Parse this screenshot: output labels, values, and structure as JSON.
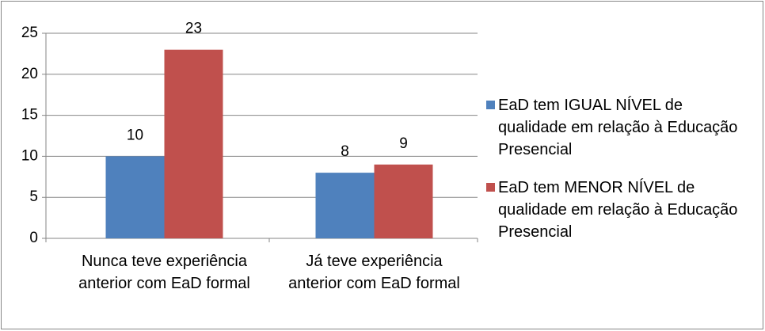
{
  "chart_data": {
    "type": "bar",
    "categories": [
      "Nunca teve experiência anterior com EaD formal",
      "Já teve experiência anterior com EaD formal"
    ],
    "series": [
      {
        "name": "EaD tem IGUAL NÍVEL de qualidade em relação à Educação Presencial",
        "color": "#4f81bd",
        "values": [
          10,
          8
        ]
      },
      {
        "name": "EaD tem MENOR NÍVEL de qualidade em relação à Educação Presencial",
        "color": "#c0504d",
        "values": [
          23,
          9
        ]
      }
    ],
    "ylim": [
      0,
      25
    ],
    "yticks": [
      0,
      5,
      10,
      15,
      20,
      25
    ],
    "grid": true,
    "legend": "right"
  }
}
